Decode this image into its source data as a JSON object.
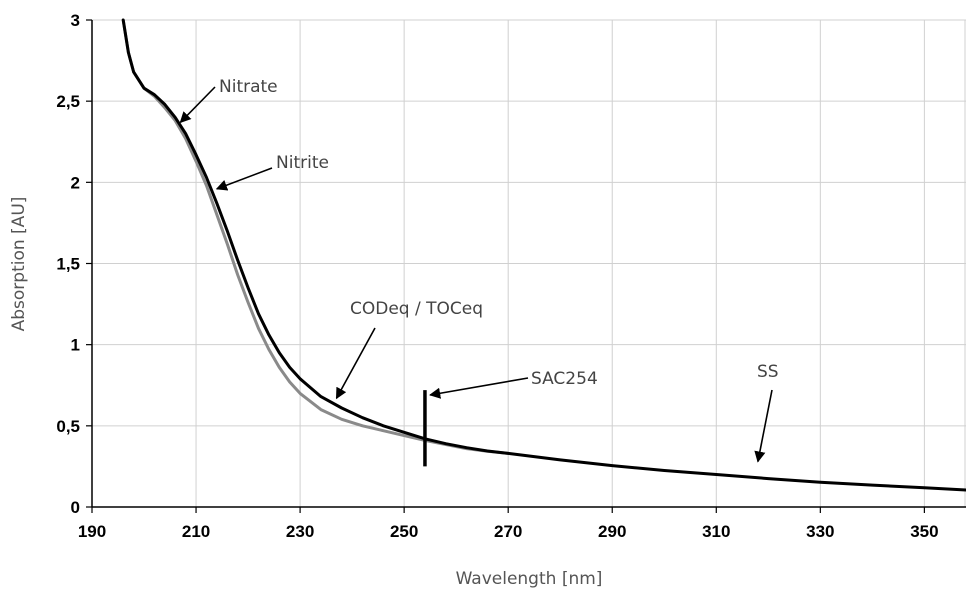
{
  "chart_data": {
    "type": "line",
    "xlabel": "Wavelength [nm]",
    "ylabel": "Absorption [AU]",
    "xlim": [
      190,
      358
    ],
    "ylim": [
      0,
      3
    ],
    "x_ticks": [
      190,
      210,
      230,
      250,
      270,
      290,
      310,
      330,
      350
    ],
    "x_tick_labels": [
      "190",
      "210",
      "230",
      "250",
      "270",
      "290",
      "310",
      "330",
      "350"
    ],
    "y_ticks": [
      0,
      0.5,
      1,
      1.5,
      2,
      2.5,
      3
    ],
    "y_tick_labels": [
      "0",
      "0,5",
      "1",
      "1,5",
      "2",
      "2,5",
      "3"
    ],
    "grid": true,
    "series": [
      {
        "color": "#000000",
        "x": [
          196,
          197,
          198,
          200,
          202,
          204,
          206,
          208,
          210,
          212,
          214,
          216,
          218,
          220,
          222,
          224,
          226,
          228,
          230,
          234,
          238,
          242,
          246,
          250,
          254,
          258,
          262,
          266,
          270,
          280,
          290,
          300,
          310,
          320,
          330,
          340,
          350,
          358
        ],
        "y": [
          3.0,
          2.8,
          2.68,
          2.58,
          2.54,
          2.48,
          2.4,
          2.3,
          2.17,
          2.03,
          1.87,
          1.7,
          1.52,
          1.35,
          1.19,
          1.06,
          0.95,
          0.86,
          0.79,
          0.68,
          0.61,
          0.55,
          0.5,
          0.46,
          0.42,
          0.39,
          0.365,
          0.345,
          0.33,
          0.29,
          0.255,
          0.225,
          0.2,
          0.175,
          0.153,
          0.135,
          0.118,
          0.105
        ]
      },
      {
        "color": "#8a8a8a",
        "x": [
          196,
          197,
          198,
          200,
          202,
          204,
          206,
          208,
          210,
          212,
          214,
          216,
          218,
          220,
          222,
          224,
          226,
          228,
          230,
          234,
          238,
          242,
          246,
          250,
          254,
          258,
          262,
          266,
          270
        ],
        "y": [
          3.0,
          2.8,
          2.68,
          2.58,
          2.53,
          2.46,
          2.38,
          2.27,
          2.13,
          1.98,
          1.8,
          1.62,
          1.43,
          1.26,
          1.1,
          0.97,
          0.86,
          0.77,
          0.7,
          0.6,
          0.54,
          0.5,
          0.47,
          0.44,
          0.41,
          0.385,
          0.36,
          0.343,
          0.33
        ]
      }
    ],
    "marker": {
      "label": "SAC254",
      "x": 254,
      "y_range": [
        0.25,
        0.72
      ]
    },
    "annotations": [
      {
        "text": "Nitrate",
        "arrow_to": [
          207,
          2.37
        ]
      },
      {
        "text": "Nitrite",
        "arrow_to": [
          214,
          1.96
        ]
      },
      {
        "text": "CODeq / TOCeq",
        "arrow_to": [
          237,
          0.67
        ]
      },
      {
        "text": "SAC254",
        "arrow_to": [
          255,
          0.69
        ]
      },
      {
        "text": "SS",
        "arrow_to": [
          318,
          0.28
        ]
      }
    ]
  }
}
